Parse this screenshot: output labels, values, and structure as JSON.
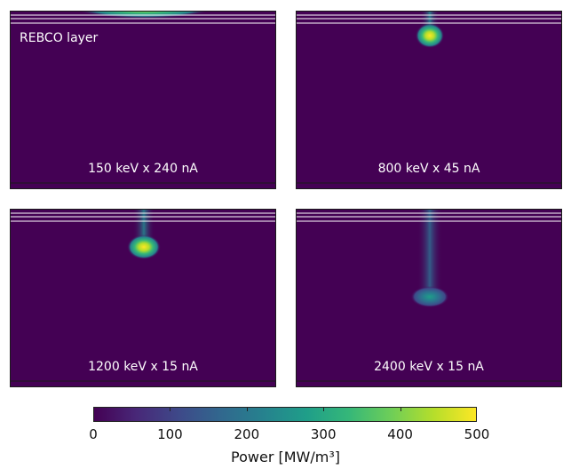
{
  "chart_data": {
    "type": "heatmap",
    "layer_annotation": "REBCO layer",
    "colormap": "viridis",
    "panels": [
      {
        "label": "150 keV x 240 nA",
        "peak_center_x": 0.5,
        "peak_depth": 0.0,
        "tail_depth": 0.0,
        "peak_intensity": 1.0,
        "beam_width": 0.17
      },
      {
        "label": "800 keV x 45 nA",
        "peak_center_x": 0.5,
        "peak_depth": 0.07,
        "tail_depth": 0.0,
        "peak_intensity": 1.0,
        "beam_width": 0.06
      },
      {
        "label": "1200 keV x 15 nA",
        "peak_center_x": 0.5,
        "peak_depth": 0.15,
        "tail_depth": 0.0,
        "peak_intensity": 1.0,
        "beam_width": 0.07
      },
      {
        "label": "2400 keV x 15 nA",
        "peak_center_x": 0.5,
        "peak_depth": 0.45,
        "tail_depth": 0.0,
        "peak_intensity": 0.55,
        "beam_width": 0.08
      }
    ],
    "colorbar": {
      "min": 0,
      "max": 500,
      "ticks": [
        "0",
        "100",
        "200",
        "300",
        "400",
        "500"
      ],
      "label": "Power [MW/m³]"
    }
  }
}
